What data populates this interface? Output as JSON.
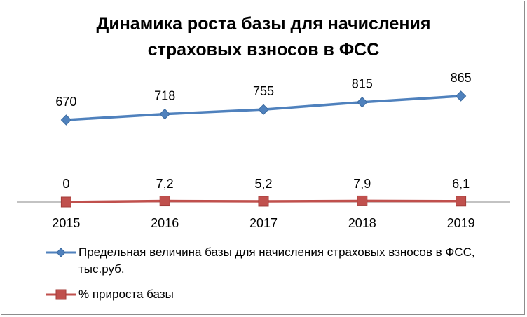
{
  "chart_data": {
    "type": "line",
    "title_lines": [
      "Динамика роста базы для начисления",
      "страховых взносов в ФСС"
    ],
    "categories": [
      "2015",
      "2016",
      "2017",
      "2018",
      "2019"
    ],
    "series": [
      {
        "name": "Предельная  величина базы для начисления страховых взносов в ФСС, тыс.руб.",
        "values": [
          670,
          718,
          755,
          815,
          865
        ],
        "labels": [
          "670",
          "718",
          "755",
          "815",
          "865"
        ],
        "color": "#4f81bd",
        "marker": "diamond"
      },
      {
        "name": "% прироста базы",
        "values": [
          0,
          7.2,
          5.2,
          7.9,
          6.1
        ],
        "labels": [
          "0",
          "7,2",
          "5,2",
          "7,9",
          "6,1"
        ],
        "color": "#c0504d",
        "marker": "square"
      }
    ],
    "ylim": [
      0,
      1000
    ],
    "grid": false,
    "legend_position": "bottom"
  }
}
